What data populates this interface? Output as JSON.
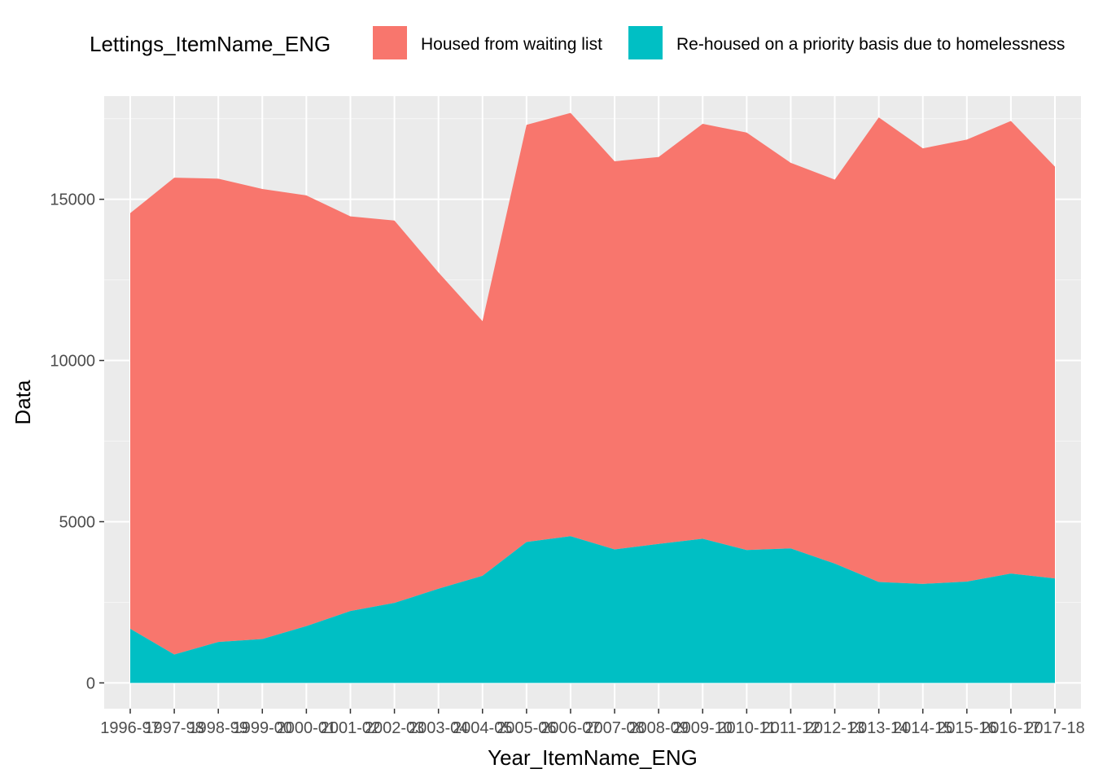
{
  "chart_data": {
    "type": "area",
    "stacked": true,
    "xlabel": "Year_ItemName_ENG",
    "ylabel": "Data",
    "ylim": [
      -800,
      18200
    ],
    "yticks": [
      0,
      5000,
      10000,
      15000
    ],
    "grid": true,
    "legend": {
      "position": "top",
      "title": "Lettings_ItemName_ENG"
    },
    "categories": [
      "1996-97",
      "1997-98",
      "1998-99",
      "1999-00",
      "2000-01",
      "2001-02",
      "2002-03",
      "2003-04",
      "2004-05",
      "2005-06",
      "2006-07",
      "2007-08",
      "2008-09",
      "2009-10",
      "2010-11",
      "2011-12",
      "2012-13",
      "2013-14",
      "2014-15",
      "2015-16",
      "2016-17",
      "2017-18"
    ],
    "series": [
      {
        "name": "Housed from waiting list",
        "color": "#F8766D",
        "values": [
          12890,
          14790,
          14370,
          13960,
          13360,
          12240,
          11860,
          9810,
          7900,
          12940,
          13130,
          12040,
          12000,
          12870,
          12950,
          11960,
          11910,
          14410,
          13510,
          13710,
          14040,
          12770
        ]
      },
      {
        "name": "Re-housed on a priority basis due to homelessness",
        "color": "#00BFC4",
        "values": [
          1680,
          880,
          1270,
          1360,
          1760,
          2230,
          2480,
          2920,
          3320,
          4370,
          4550,
          4140,
          4310,
          4470,
          4120,
          4170,
          3700,
          3130,
          3070,
          3140,
          3390,
          3240
        ]
      }
    ]
  }
}
